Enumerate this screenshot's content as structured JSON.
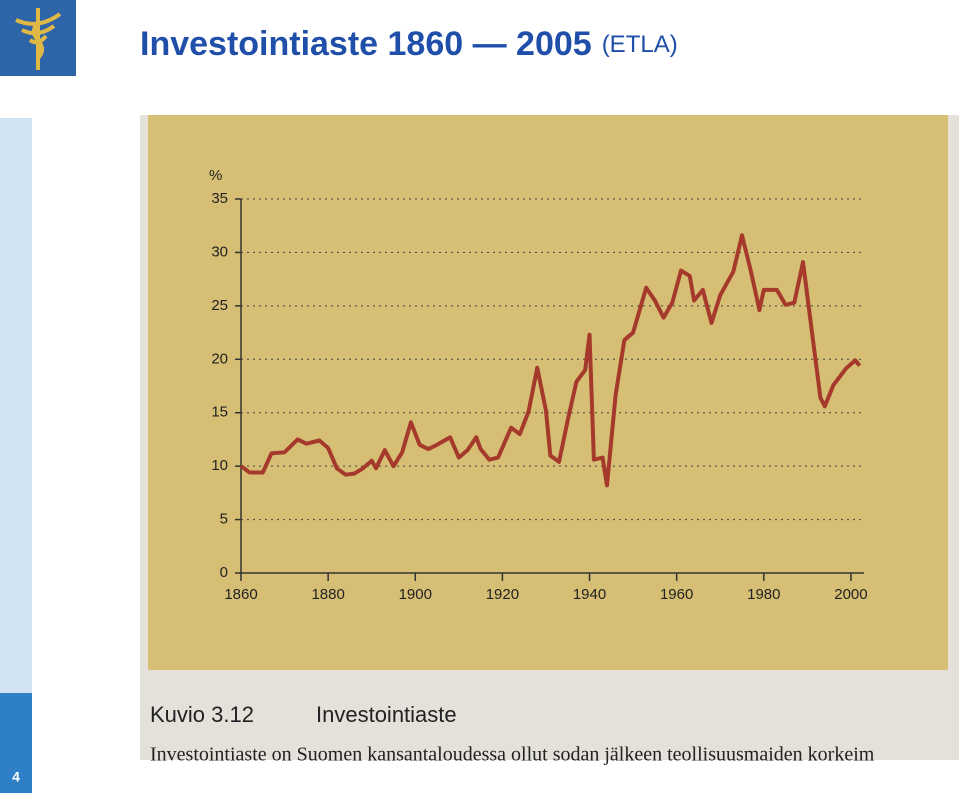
{
  "slide": {
    "title": "Investointiaste 1860 — 2005",
    "title_suffix": "(ETLA)",
    "page_number": "4"
  },
  "caption": {
    "label": "Kuvio 3.12",
    "title": "Investointiaste",
    "text": "Investointiaste on Suomen kansantaloudessa ollut sodan jälkeen teollisuusmaiden korkeim"
  },
  "chart_data": {
    "type": "line",
    "ylabel": "%",
    "x": [
      1860,
      1862,
      1865,
      1867,
      1870,
      1873,
      1875,
      1878,
      1880,
      1882,
      1884,
      1886,
      1888,
      1890,
      1891,
      1893,
      1895,
      1897,
      1899,
      1901,
      1903,
      1905,
      1908,
      1910,
      1912,
      1914,
      1915,
      1917,
      1919,
      1922,
      1924,
      1926,
      1928,
      1930,
      1931,
      1933,
      1935,
      1937,
      1939,
      1940,
      1941,
      1943,
      1944,
      1946,
      1948,
      1950,
      1953,
      1955,
      1957,
      1959,
      1961,
      1963,
      1964,
      1966,
      1968,
      1970,
      1973,
      1975,
      1977,
      1979,
      1980,
      1983,
      1985,
      1987,
      1989,
      1991,
      1993,
      1994,
      1996,
      1999,
      2001,
      2002
    ],
    "series": [
      {
        "name": "Investointiaste",
        "color": "#a53a2c",
        "values": [
          10.0,
          9.4,
          9.4,
          11.2,
          11.3,
          12.5,
          12.1,
          12.4,
          11.7,
          9.8,
          9.2,
          9.3,
          9.8,
          10.5,
          9.8,
          11.5,
          10.0,
          11.3,
          14.1,
          12.0,
          11.6,
          12.0,
          12.7,
          10.8,
          11.5,
          12.7,
          11.6,
          10.6,
          10.8,
          13.6,
          13.0,
          15.1,
          19.2,
          15.2,
          11.0,
          10.4,
          14.3,
          17.9,
          19.0,
          22.3,
          10.6,
          10.8,
          8.2,
          16.7,
          21.8,
          22.5,
          26.7,
          25.5,
          23.9,
          25.3,
          28.3,
          27.8,
          25.5,
          26.5,
          23.4,
          26.0,
          28.2,
          31.6,
          28.3,
          24.6,
          26.5,
          26.5,
          25.1,
          25.3,
          29.1,
          22.7,
          16.4,
          15.6,
          17.6,
          19.2,
          19.9,
          19.4
        ]
      }
    ],
    "xlim": [
      1860,
      2003
    ],
    "xticks": [
      1860,
      1880,
      1900,
      1920,
      1940,
      1960,
      1980,
      2000
    ],
    "ylim": [
      0,
      35
    ],
    "yticks": [
      0,
      5,
      10,
      15,
      20,
      25,
      30,
      35
    ],
    "grid": true
  }
}
